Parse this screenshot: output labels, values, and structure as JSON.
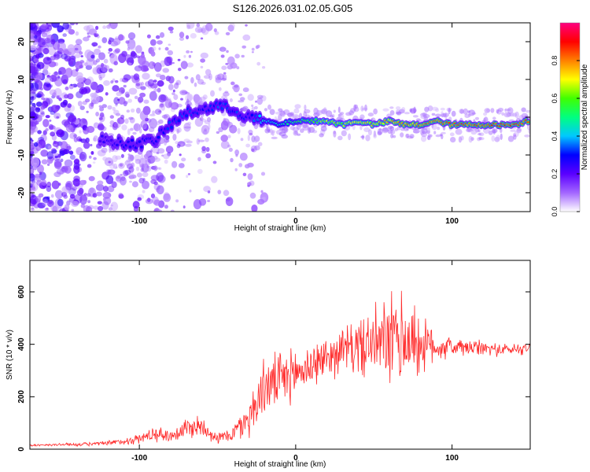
{
  "page": {
    "title": "S126.2026.031.02.05.G05"
  },
  "colors": {
    "snr_line": "#ff2a2a",
    "background": "#ffffff",
    "axis": "#000000",
    "ridge_low": "#7a2cff",
    "ridge_high": "#ff1e1e"
  },
  "chart_data": [
    {
      "type": "heatmap",
      "title": "S126.2026.031.02.05.G05",
      "xlabel": "Height of straight line (km)",
      "ylabel": "Frequency (Hz)",
      "xlim": [
        -170,
        150
      ],
      "ylim": [
        -25,
        25
      ],
      "x_ticks": [
        -100,
        0,
        100
      ],
      "y_ticks": [
        -20,
        -10,
        0,
        10,
        20
      ],
      "x_tick_labels": [
        "-100",
        "0",
        "100"
      ],
      "y_tick_labels": [
        "-20",
        "-10",
        "0",
        "10",
        "20"
      ],
      "colorbar": {
        "label": "Normalized spectral amplitude",
        "range": [
          0,
          1
        ],
        "ticks": [
          0.0,
          0.2,
          0.4,
          0.6,
          0.8
        ],
        "tick_labels": [
          "0.0",
          "0.2",
          "0.4",
          "0.6",
          "0.8"
        ],
        "colormap": [
          "#ffffff",
          "#a366ff",
          "#5a00ff",
          "#0000ff",
          "#00c8ff",
          "#00ff80",
          "#40ff00",
          "#ffff00",
          "#ff8000",
          "#ff0000",
          "#ff0080"
        ]
      },
      "ridge": {
        "x": [
          -120,
          -110,
          -100,
          -90,
          -80,
          -70,
          -60,
          -50,
          -40,
          -30,
          -20,
          -10,
          0,
          10,
          20,
          30,
          40,
          50,
          60,
          70,
          80,
          90,
          100,
          110,
          120,
          130,
          140,
          148
        ],
        "y": [
          -6,
          -7,
          -7,
          -6,
          -2,
          1,
          2,
          3,
          2,
          0,
          -1,
          -2,
          -1,
          -1,
          -1,
          -2,
          -1,
          -2,
          -1,
          -2,
          -2,
          -1,
          -2,
          -2,
          -2,
          -2,
          -2,
          -1
        ],
        "amplitude": [
          0.25,
          0.3,
          0.3,
          0.3,
          0.35,
          0.35,
          0.3,
          0.35,
          0.35,
          0.3,
          0.45,
          0.5,
          0.55,
          0.6,
          0.7,
          0.7,
          0.75,
          0.75,
          0.8,
          0.85,
          0.85,
          0.9,
          0.9,
          0.9,
          0.9,
          0.92,
          0.92,
          0.9
        ]
      }
    },
    {
      "type": "line",
      "xlabel": "Height of straight line (km)",
      "ylabel": "SNR (10 * v/v)",
      "xlim": [
        -170,
        150
      ],
      "ylim": [
        0,
        720
      ],
      "x_ticks": [
        -100,
        0,
        100
      ],
      "y_ticks": [
        0,
        200,
        400,
        600
      ],
      "x_tick_labels": [
        "-100",
        "0",
        "100"
      ],
      "y_tick_labels": [
        "0",
        "200",
        "400",
        "600"
      ],
      "series": [
        {
          "name": "SNR",
          "x": [
            -170,
            -160,
            -150,
            -140,
            -130,
            -120,
            -110,
            -100,
            -90,
            -80,
            -70,
            -60,
            -50,
            -40,
            -30,
            -25,
            -20,
            -10,
            0,
            10,
            20,
            30,
            40,
            50,
            60,
            70,
            80,
            90,
            100,
            110,
            120,
            130,
            140,
            150
          ],
          "y": [
            15,
            15,
            18,
            18,
            20,
            22,
            30,
            40,
            60,
            50,
            80,
            90,
            40,
            60,
            120,
            180,
            240,
            260,
            290,
            320,
            350,
            380,
            390,
            400,
            410,
            420,
            400,
            390,
            390,
            385,
            385,
            380,
            380,
            390
          ],
          "noise": [
            5,
            5,
            6,
            6,
            8,
            10,
            15,
            20,
            30,
            25,
            45,
            45,
            20,
            35,
            80,
            100,
            110,
            110,
            100,
            90,
            80,
            90,
            110,
            140,
            180,
            200,
            120,
            60,
            40,
            35,
            30,
            25,
            25,
            25
          ]
        }
      ]
    }
  ]
}
